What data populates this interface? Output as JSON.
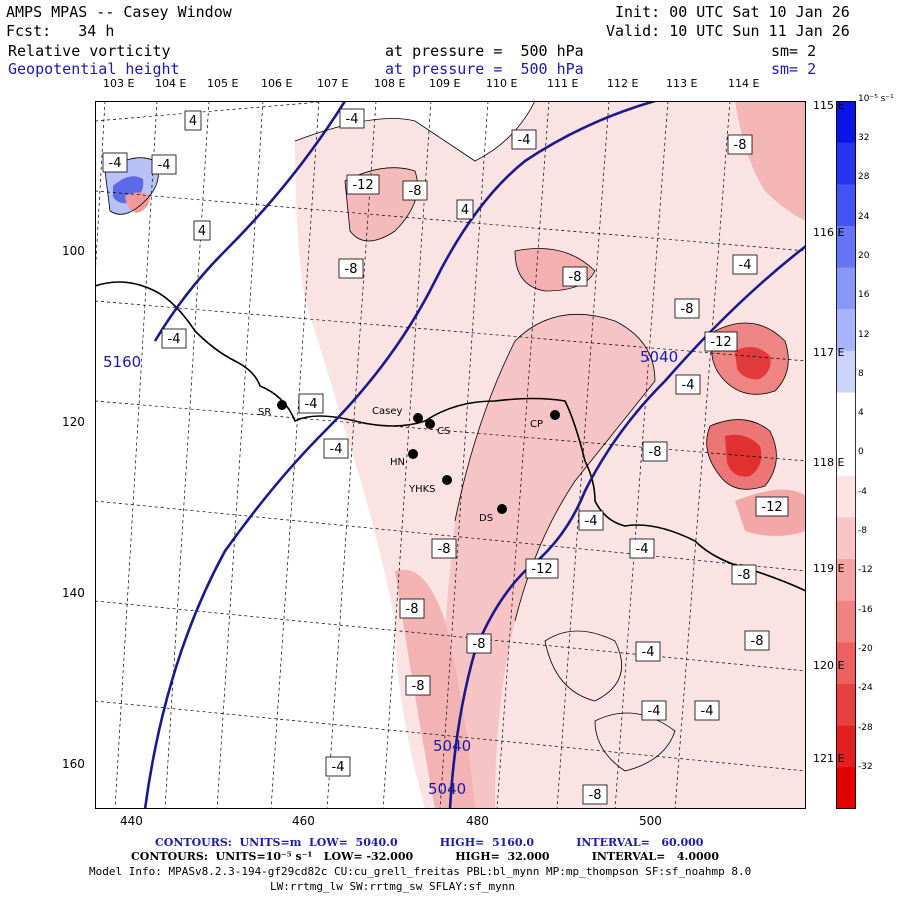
{
  "header": {
    "title": "AMPS MPAS -- Casey Window",
    "fcst": "Fcst:   34 h",
    "init": "Init: 00 UTC Sat 10 Jan 26",
    "valid": "Valid: 10 UTC Sun 11 Jan 26"
  },
  "fields": [
    {
      "name": "Relative vorticity",
      "level": "at pressure =  500 hPa",
      "sm": "sm= 2",
      "color": "#000000"
    },
    {
      "name": "Geopotential height",
      "level": "at pressure =  500 hPa",
      "sm": "sm= 2",
      "color": "#1a1aa8"
    }
  ],
  "lon_labels": [
    "103 E",
    "104 E",
    "105 E",
    "106 E",
    "107 E",
    "108 E",
    "109 E",
    "110 E",
    "111 E",
    "112 E",
    "113 E",
    "114 E"
  ],
  "lat_labels": [
    "115 E",
    "116 E",
    "117 E",
    "118 E",
    "119 E",
    "120 E",
    "121 E"
  ],
  "x_ticks": [
    "440",
    "460",
    "480",
    "500"
  ],
  "y_ticks": [
    "100",
    "120",
    "140",
    "160"
  ],
  "colorbar": {
    "unit": "10⁻⁵ s⁻¹",
    "labels": [
      "32",
      "28",
      "24",
      "20",
      "16",
      "12",
      "8",
      "4",
      "0",
      "-4",
      "-8",
      "-12",
      "-16",
      "-20",
      "-24",
      "-28",
      "-32"
    ],
    "colors": [
      "#0a14e6",
      "#2633f0",
      "#4553f2",
      "#6675f4",
      "#8896f6",
      "#a9b4f8",
      "#cbd3fb",
      "#ffffff",
      "#ffffff",
      "#fde3e3",
      "#f9c4c4",
      "#f5a3a3",
      "#f08282",
      "#ec6060",
      "#e83f3f",
      "#e41f1f",
      "#e00000"
    ]
  },
  "stations": [
    {
      "name": "SR"
    },
    {
      "name": "Casey"
    },
    {
      "name": "CS"
    },
    {
      "name": "HN"
    },
    {
      "name": "YHKS"
    },
    {
      "name": "DS"
    },
    {
      "name": "CP"
    }
  ],
  "height_labels": [
    "5160",
    "5040",
    "5040",
    "5040"
  ],
  "vort_labels": [
    "4",
    "-4",
    "-4",
    "-4",
    "4",
    "-12",
    "-8",
    "-4",
    "4",
    "-8",
    "-8",
    "-4",
    "-8",
    "-8",
    "-12",
    "-4",
    "-4",
    "-4",
    "-8",
    "-4",
    "-12",
    "-4",
    "-8",
    "-8",
    "-12",
    "-8",
    "-8",
    "-8",
    "-4",
    "-4",
    "-8",
    "-4",
    "-4",
    "-8",
    "-4"
  ],
  "footer": {
    "contours1": "CONTOURS:  UNITS=m  LOW=  5040.0           HIGH=  5160.0           INTERVAL=   60.000",
    "contours2": "CONTOURS:  UNITS=10⁻⁵ s⁻¹   LOW= -32.000           HIGH=  32.000           INTERVAL=   4.0000",
    "model_info": "Model Info: MPASv8.2.3-194-gf29cd82c CU:cu_grell_freitas PBL:bl_mynn MP:mp_thompson SF:sf_noahmp 8.0",
    "model_info2": "LW:rrtmg_lw SW:rrtmg_sw SFLAY:sf_mynn"
  }
}
